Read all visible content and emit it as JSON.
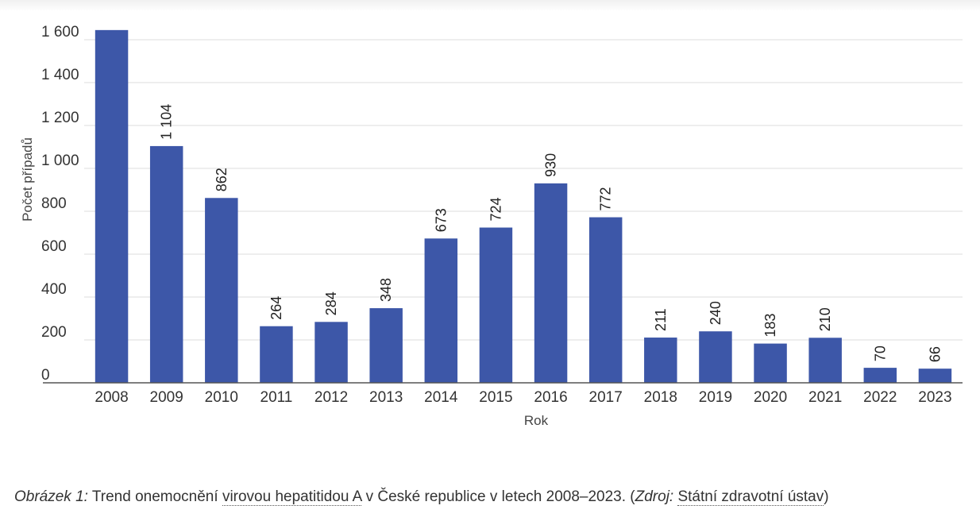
{
  "chart_data": {
    "type": "bar",
    "categories": [
      "2008",
      "2009",
      "2010",
      "2011",
      "2012",
      "2013",
      "2014",
      "2015",
      "2016",
      "2017",
      "2018",
      "2019",
      "2020",
      "2021",
      "2022",
      "2023"
    ],
    "values": [
      1645,
      1104,
      862,
      264,
      284,
      348,
      673,
      724,
      930,
      772,
      211,
      240,
      183,
      210,
      70,
      66
    ],
    "data_labels": [
      "",
      "1 104",
      "862",
      "264",
      "284",
      "348",
      "673",
      "724",
      "930",
      "772",
      "211",
      "240",
      "183",
      "210",
      "70",
      "66"
    ],
    "y_ticks": [
      0,
      200,
      400,
      600,
      800,
      1000,
      1200,
      1400,
      1600
    ],
    "y_tick_labels": [
      "0",
      "200",
      "400",
      "600",
      "800",
      "1 000",
      "1 200",
      "1 400",
      "1 600"
    ],
    "xlabel": "Rok",
    "ylabel": "Počet případů",
    "ylim": [
      0,
      1600
    ],
    "grid": true,
    "bar_color": "#3d57a8"
  },
  "caption": {
    "label": "Obrázek 1:",
    "text_before_link": " Trend onemocnění ",
    "link1": "virovou hepatitidou A",
    "text_after_link": " v České republice v letech 2008–2023. (",
    "source_label": "Zdroj:",
    "source_space": " ",
    "link2": "Státní zdravotní ústav",
    "closing": ")"
  }
}
